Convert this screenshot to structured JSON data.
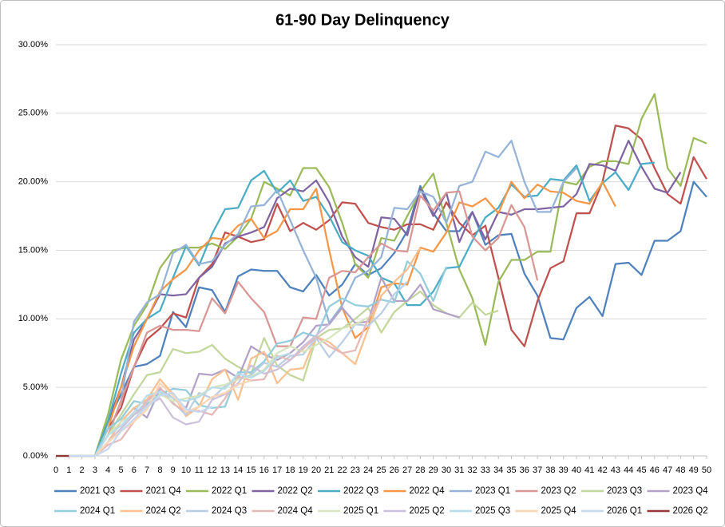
{
  "chart_data": {
    "type": "line",
    "title": "61-90 Day Delinquency",
    "x": [
      0,
      1,
      2,
      3,
      4,
      5,
      6,
      7,
      8,
      9,
      10,
      11,
      12,
      13,
      14,
      15,
      16,
      17,
      18,
      19,
      20,
      21,
      22,
      23,
      24,
      25,
      26,
      27,
      28,
      29,
      30,
      31,
      32,
      33,
      34,
      35,
      36,
      37,
      38,
      39,
      40,
      41,
      42,
      43,
      44,
      45,
      46,
      47,
      48,
      49,
      50
    ],
    "xlim": [
      0,
      50
    ],
    "xticks": [
      0,
      1,
      2,
      3,
      4,
      5,
      6,
      7,
      8,
      9,
      10,
      11,
      12,
      13,
      14,
      15,
      16,
      17,
      18,
      19,
      20,
      21,
      22,
      23,
      24,
      25,
      26,
      27,
      28,
      29,
      30,
      31,
      32,
      33,
      34,
      35,
      36,
      37,
      38,
      39,
      40,
      41,
      42,
      43,
      44,
      45,
      46,
      47,
      48,
      49,
      50
    ],
    "ylim": [
      0,
      30
    ],
    "yticks": [
      {
        "value": 0,
        "label": "0.00%"
      },
      {
        "value": 5,
        "label": "5.00%"
      },
      {
        "value": 10,
        "label": "10.00%"
      },
      {
        "value": 15,
        "label": "15.00%"
      },
      {
        "value": 20,
        "label": "20.00%"
      },
      {
        "value": 25,
        "label": "25.00%"
      },
      {
        "value": 30,
        "label": "30.00%"
      }
    ],
    "grid": true,
    "legend": "bottom",
    "series": [
      {
        "name": "2021 Q3",
        "color": "#4f81bd",
        "values": [
          0,
          0,
          0,
          0,
          2.5,
          4.5,
          6.5,
          6.7,
          7.3,
          10.5,
          9.4,
          12.3,
          12.1,
          10.5,
          13.1,
          13.6,
          13.5,
          13.5,
          12.3,
          12.0,
          13.2,
          11.7,
          12.5,
          14.0,
          13.2,
          13.7,
          14.8,
          16.4,
          19.7,
          17.7,
          16.4,
          16.4,
          17.8,
          15.4,
          16.1,
          16.2,
          13.3,
          11.7,
          8.6,
          8.5,
          10.8,
          11.6,
          10.2,
          14.0,
          14.1,
          13.2,
          15.7,
          15.7,
          16.4,
          20.0,
          18.9
        ]
      },
      {
        "name": "2021 Q4",
        "color": "#c0504d",
        "values": [
          0,
          0,
          0,
          0,
          2,
          3.5,
          6.5,
          8.5,
          9.3,
          10.4,
          10.1,
          13.0,
          14.0,
          16.3,
          16.0,
          15.6,
          15.8,
          18.4,
          16.4,
          17.0,
          16.5,
          17.2,
          18.5,
          18.4,
          17.0,
          16.7,
          16.5,
          16.9,
          16.9,
          16.5,
          18.5,
          17.0,
          16.1,
          16.8,
          13.0,
          9.2,
          8.0,
          11.3,
          13.7,
          14.2,
          17.7,
          17.7,
          20.0,
          24.1,
          23.9,
          23.1,
          21.0,
          19.1,
          18.4,
          21.8,
          20.2
        ]
      },
      {
        "name": "2022 Q1",
        "color": "#9bbb59",
        "values": [
          0,
          0,
          0,
          0,
          3,
          7,
          9.5,
          11,
          13.7,
          15.0,
          15.2,
          15.2,
          15.5,
          15.1,
          16.0,
          17.3,
          20.0,
          19.5,
          19.0,
          21.0,
          21.0,
          19.6,
          17.0,
          14.0,
          13.0,
          15.9,
          15.7,
          17.5,
          19.3,
          20.6,
          17.0,
          13.6,
          11.5,
          8.1,
          12.7,
          14.3,
          14.3,
          14.9,
          14.9,
          20.0,
          19.8,
          21.1,
          21.5,
          21.5,
          21.3,
          24.6,
          26.4,
          21.0,
          19.7,
          23.2,
          22.8
        ]
      },
      {
        "name": "2022 Q2",
        "color": "#8064a2",
        "values": [
          0,
          0,
          0,
          0,
          2.5,
          5,
          8.5,
          10,
          11.8,
          11.7,
          11.8,
          13.0,
          13.8,
          15.5,
          16.0,
          16.3,
          16.7,
          18.8,
          19.5,
          19.3,
          20.1,
          18.5,
          16.0,
          14.5,
          13.8,
          17.4,
          17.3,
          16.1,
          19.5,
          17.5,
          19.2,
          15.6,
          17.8,
          15.8,
          17.8,
          17.6,
          18.0,
          18.0,
          18.1,
          18.2,
          19.1,
          21.3,
          21.2,
          20.8,
          23.0,
          21.1,
          19.5,
          19.2,
          20.7,
          null,
          null
        ]
      },
      {
        "name": "2022 Q3",
        "color": "#4bacc6",
        "values": [
          0,
          0,
          0,
          0,
          2.5,
          6,
          9,
          10,
          10.6,
          13,
          15.3,
          13.9,
          16.2,
          18.0,
          18.1,
          20.1,
          20.8,
          19.2,
          20.1,
          18.6,
          18.9,
          17.5,
          15.6,
          15.0,
          14.6,
          13.0,
          12.6,
          11.0,
          11.0,
          12.0,
          13.7,
          13.8,
          15.7,
          17.4,
          18.1,
          19.8,
          18.9,
          19.0,
          20.2,
          20.1,
          21.2,
          18.6,
          19.9,
          20.7,
          19.4,
          21.3,
          21.4,
          null,
          null,
          null,
          null
        ]
      },
      {
        "name": "2022 Q4",
        "color": "#f79646",
        "values": [
          0,
          0,
          0,
          0,
          2,
          5,
          8,
          10,
          12,
          12.9,
          13.6,
          15.0,
          15.9,
          15.8,
          16.8,
          17.3,
          15.9,
          16.4,
          18.0,
          18.0,
          19.5,
          15.0,
          10.8,
          8.6,
          9.4,
          12.3,
          12.6,
          12.5,
          15.2,
          14.9,
          16.3,
          18.5,
          18.2,
          18.8,
          17.7,
          20.0,
          18.8,
          19.8,
          19.3,
          19.2,
          18.6,
          18.4,
          20.0,
          18.2,
          null,
          null,
          null,
          null,
          null,
          null,
          null
        ]
      },
      {
        "name": "2023 Q1",
        "color": "#95b3d7",
        "values": [
          0,
          0,
          0,
          0,
          1.5,
          4,
          9.8,
          11.2,
          11.8,
          14.8,
          15.4,
          14.0,
          14.2,
          15.4,
          16.2,
          18.2,
          18.3,
          19.4,
          17.2,
          15.0,
          13.0,
          9.7,
          11.0,
          13.0,
          13.5,
          14.5,
          18.1,
          18.0,
          19.3,
          18.9,
          17.0,
          19.7,
          20.0,
          22.2,
          21.8,
          23.0,
          20.0,
          17.8,
          17.8,
          20.0,
          21.0,
          null,
          null,
          null,
          null,
          null,
          null,
          null,
          null,
          null,
          null
        ]
      },
      {
        "name": "2023 Q2",
        "color": "#d99694",
        "values": [
          0,
          0,
          0,
          0,
          1.5,
          4,
          6.5,
          9,
          9.5,
          9.2,
          9.2,
          9.1,
          11.5,
          10.4,
          12.7,
          11.5,
          10.5,
          8.0,
          8.0,
          10.1,
          10.0,
          13.0,
          13.5,
          13.4,
          14.5,
          15.5,
          15.0,
          14.9,
          19.0,
          17.9,
          19.2,
          19.3,
          16.0,
          15.0,
          15.9,
          18.3,
          16.7,
          12.8,
          null,
          null,
          null,
          null,
          null,
          null,
          null,
          null,
          null,
          null,
          null,
          null,
          null
        ]
      },
      {
        "name": "2023 Q3",
        "color": "#c3d69b",
        "values": [
          0,
          0,
          0,
          0,
          1.5,
          3,
          4.5,
          5.9,
          6.1,
          7.8,
          7.5,
          7.6,
          8.1,
          7.1,
          6.5,
          6.0,
          8.6,
          6.6,
          5.9,
          5.5,
          8.6,
          9.2,
          9.3,
          10.0,
          10.8,
          9.0,
          10.5,
          11.3,
          12.0,
          11.0,
          10.4,
          10.1,
          11.2,
          10.3,
          10.6,
          null,
          null,
          null,
          null,
          null,
          null,
          null,
          null,
          null,
          null,
          null,
          null,
          null,
          null,
          null,
          null
        ]
      },
      {
        "name": "2023 Q4",
        "color": "#b3a2c7",
        "values": [
          0,
          0,
          0,
          0,
          1,
          2.5,
          3.5,
          2.8,
          4.9,
          4.2,
          3.5,
          6.0,
          5.9,
          6.3,
          5.7,
          8.0,
          7.4,
          7.0,
          7.5,
          8.3,
          9.5,
          9.6,
          10.8,
          9.7,
          9.8,
          13.0,
          11.3,
          11.3,
          12.5,
          10.7,
          10.4,
          10.1,
          null,
          null,
          null,
          null,
          null,
          null,
          null,
          null,
          null,
          null,
          null,
          null,
          null,
          null,
          null,
          null,
          null,
          null,
          null
        ]
      },
      {
        "name": "2024 Q1",
        "color": "#93cddd",
        "values": [
          0,
          0,
          0,
          0,
          2,
          2.7,
          4.0,
          3.8,
          4.5,
          4.9,
          4.8,
          3.7,
          3.5,
          3.6,
          6.1,
          6.1,
          6.9,
          8.2,
          8.4,
          9.0,
          8.7,
          10.9,
          11.5,
          11.0,
          10.9,
          11.4,
          11.2,
          14.2,
          13.3,
          11.3,
          13.8,
          null,
          null,
          null,
          null,
          null,
          null,
          null,
          null,
          null,
          null,
          null,
          null,
          null,
          null,
          null,
          null,
          null,
          null,
          null,
          null
        ]
      },
      {
        "name": "2024 Q2",
        "color": "#fac090",
        "values": [
          0,
          0,
          0,
          0,
          1,
          2.5,
          3.5,
          4.1,
          5.6,
          4.5,
          2.9,
          3.6,
          5.6,
          6.3,
          4.1,
          7.1,
          7.6,
          5.3,
          6.3,
          6.4,
          8.7,
          8.3,
          7.5,
          6.7,
          9.3,
          11.7,
          12.7,
          13.6,
          15.2,
          null,
          null,
          null,
          null,
          null,
          null,
          null,
          null,
          null,
          null,
          null,
          null,
          null,
          null,
          null,
          null,
          null,
          null,
          null,
          null,
          null,
          null
        ]
      },
      {
        "name": "2024 Q3",
        "color": "#b9cde5",
        "values": [
          0,
          0,
          0,
          0,
          1,
          2,
          3,
          4,
          4.7,
          3.9,
          3.0,
          4.6,
          4.2,
          5.1,
          5.6,
          5.9,
          6.8,
          6.5,
          7.3,
          7.4,
          8.6,
          7.2,
          8.3,
          9.6,
          9.5,
          10.4,
          11.8,
          12.7,
          null,
          null,
          null,
          null,
          null,
          null,
          null,
          null,
          null,
          null,
          null,
          null,
          null,
          null,
          null,
          null,
          null,
          null,
          null,
          null,
          null,
          null,
          null
        ]
      },
      {
        "name": "2024 Q4",
        "color": "#e6b9b8",
        "values": [
          0,
          0,
          0,
          0,
          0.8,
          1.2,
          2.5,
          4.0,
          5.0,
          3.8,
          3.2,
          3.3,
          3.0,
          4.2,
          5.8,
          5.5,
          5.6,
          7.3,
          7.0,
          7.8,
          8.7,
          8.0,
          7.5,
          7.7,
          10.0,
          11.5,
          null,
          null,
          null,
          null,
          null,
          null,
          null,
          null,
          null,
          null,
          null,
          null,
          null,
          null,
          null,
          null,
          null,
          null,
          null,
          null,
          null,
          null,
          null,
          null,
          null
        ]
      },
      {
        "name": "2025 Q1",
        "color": "#d7e4bd",
        "values": [
          0,
          0,
          0,
          0,
          1.5,
          2.5,
          3.0,
          3.5,
          4.5,
          4.0,
          4.2,
          4.4,
          5.0,
          5.2,
          5.6,
          5.8,
          6.3,
          7.5,
          8.0,
          7.6,
          8.1,
          8.6,
          9.3,
          9.6,
          10.1,
          null,
          null,
          null,
          null,
          null,
          null,
          null,
          null,
          null,
          null,
          null,
          null,
          null,
          null,
          null,
          null,
          null,
          null,
          null,
          null,
          null,
          null,
          null,
          null,
          null,
          null
        ]
      },
      {
        "name": "2025 Q2",
        "color": "#ccc1da",
        "values": [
          0,
          0,
          0,
          0,
          1,
          2,
          3.0,
          3.7,
          4.2,
          2.8,
          2.3,
          2.5,
          4.1,
          4.5,
          5.3,
          6.6,
          6.0,
          6.3,
          7.0,
          8.0,
          8.8,
          9.6,
          null,
          null,
          null,
          null,
          null,
          null,
          null,
          null,
          null,
          null,
          null,
          null,
          null,
          null,
          null,
          null,
          null,
          null,
          null,
          null,
          null,
          null,
          null,
          null,
          null,
          null,
          null,
          null,
          null
        ]
      },
      {
        "name": "2025 Q3",
        "color": "#b7dde8",
        "values": [
          0,
          0,
          0,
          0,
          1.5,
          2.2,
          3.2,
          4.4,
          4.7,
          4.2,
          4.0,
          4.3,
          5.0,
          4.9,
          6.0,
          5.7,
          6.2,
          7.2,
          7.5,
          null,
          null,
          null,
          null,
          null,
          null,
          null,
          null,
          null,
          null,
          null,
          null,
          null,
          null,
          null,
          null,
          null,
          null,
          null,
          null,
          null,
          null,
          null,
          null,
          null,
          null,
          null,
          null,
          null,
          null,
          null,
          null
        ]
      },
      {
        "name": "2025 Q4",
        "color": "#fcd5b5",
        "values": [
          0,
          0,
          0,
          0,
          1,
          1.8,
          2.5,
          3.4,
          5.3,
          4.4,
          3.2,
          3.6,
          4.3,
          4.6,
          5.2,
          5.5,
          null,
          null,
          null,
          null,
          null,
          null,
          null,
          null,
          null,
          null,
          null,
          null,
          null,
          null,
          null,
          null,
          null,
          null,
          null,
          null,
          null,
          null,
          null,
          null,
          null,
          null,
          null,
          null,
          null,
          null,
          null,
          null,
          null,
          null,
          null
        ]
      },
      {
        "name": "2026 Q1",
        "color": "#c6d9f1",
        "values": [
          0,
          0,
          0,
          0,
          0.5,
          1.8,
          2.7,
          3.6,
          4.4,
          4.6,
          3.4,
          3.2,
          3.6,
          null,
          null,
          null,
          null,
          null,
          null,
          null,
          null,
          null,
          null,
          null,
          null,
          null,
          null,
          null,
          null,
          null,
          null,
          null,
          null,
          null,
          null,
          null,
          null,
          null,
          null,
          null,
          null,
          null,
          null,
          null,
          null,
          null,
          null,
          null,
          null,
          null,
          null
        ]
      },
      {
        "name": "2026 Q2",
        "color": "#953735",
        "values": [
          0,
          0,
          null,
          null,
          null,
          null,
          null,
          null,
          null,
          null,
          null,
          null,
          null,
          null,
          null,
          null,
          null,
          null,
          null,
          null,
          null,
          null,
          null,
          null,
          null,
          null,
          null,
          null,
          null,
          null,
          null,
          null,
          null,
          null,
          null,
          null,
          null,
          null,
          null,
          null,
          null,
          null,
          null,
          null,
          null,
          null,
          null,
          null,
          null,
          null,
          null
        ]
      }
    ]
  }
}
